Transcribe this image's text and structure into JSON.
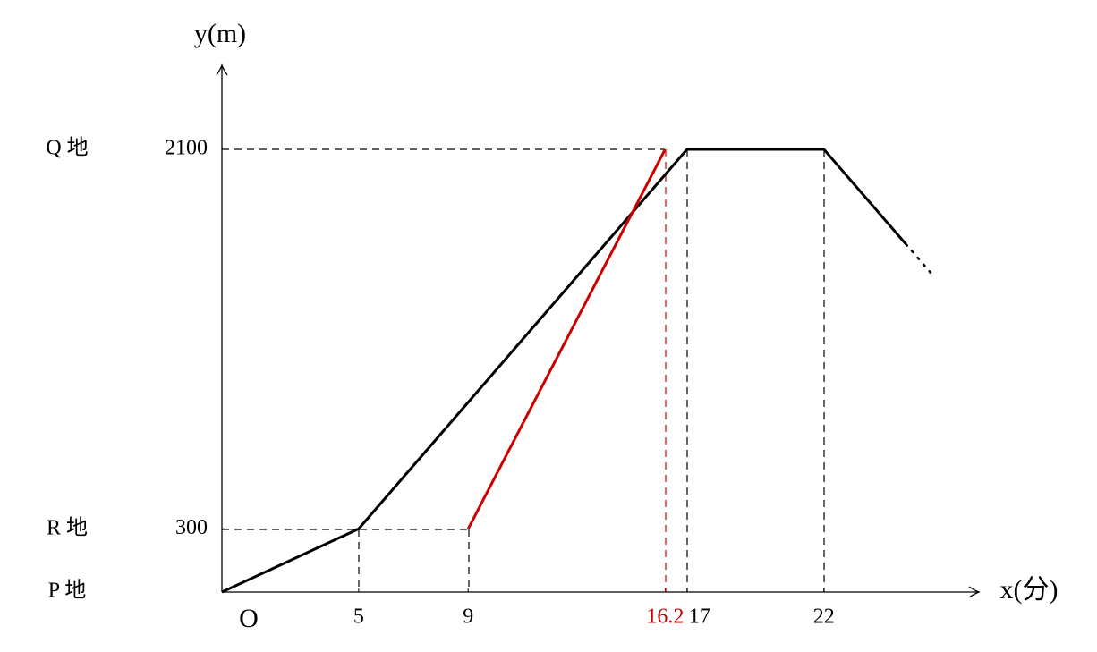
{
  "chart_data": {
    "type": "line",
    "x_label": "x(分)",
    "y_label": "y(m)",
    "origin_label": "O",
    "annotations": [
      "Q 地",
      "R 地",
      "P 地"
    ],
    "xlim": [
      0,
      27.6
    ],
    "ylim": [
      0,
      2490
    ],
    "xticks": [
      5,
      9,
      16.2,
      17,
      22
    ],
    "xtick_colors": [
      "#000000",
      "#000000",
      "#cc0000",
      "#000000",
      "#000000"
    ],
    "yticks": [
      300,
      2100
    ],
    "series": [
      {
        "color": "#000000",
        "dash": "solid",
        "x": [
          0,
          5,
          17,
          22,
          25
        ],
        "values": [
          0,
          300,
          2100,
          2100,
          1650
        ]
      },
      {
        "color": "#000000",
        "dash": "dotted",
        "x": [
          25,
          26
        ],
        "values": [
          1650,
          1500
        ]
      },
      {
        "color": "#cc0000",
        "dash": "solid",
        "x": [
          9,
          16.2
        ],
        "values": [
          300,
          2100
        ]
      }
    ]
  }
}
